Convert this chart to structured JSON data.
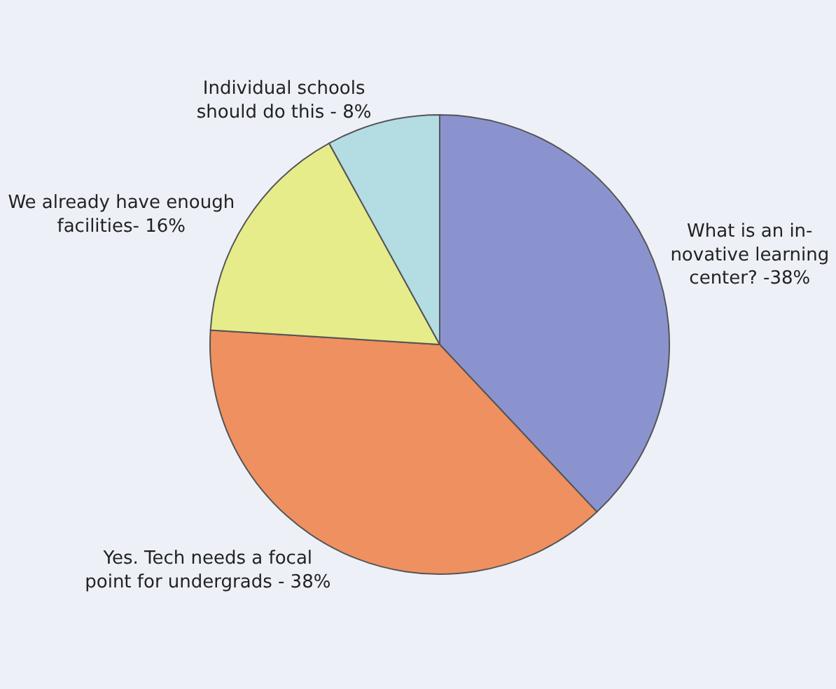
{
  "chart_data": {
    "type": "pie",
    "categories": [
      "What is an in-\nnovative learning\ncenter? -38%",
      "Yes. Tech needs a focal\npoint for undergrads - 38%",
      "We already have enough\nfacilities- 16%",
      "Individual schools\nshould do this - 8%"
    ],
    "values": [
      38,
      38,
      16,
      8
    ],
    "colors": [
      "#8b93cf",
      "#ef9060",
      "#e6ec8a",
      "#b3dde3"
    ],
    "legend": false
  }
}
